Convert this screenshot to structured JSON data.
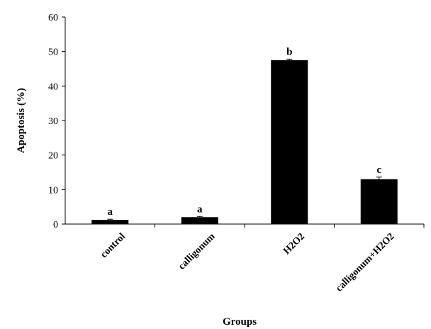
{
  "chart_data": {
    "type": "bar",
    "categories": [
      "control",
      "calligonum",
      "H2O2",
      "calligonum+H2O2"
    ],
    "values": [
      1.2,
      2.0,
      47.5,
      13.0
    ],
    "errors": [
      0.2,
      0.2,
      0.3,
      0.6
    ],
    "significance_labels": [
      "a",
      "a",
      "b",
      "c"
    ],
    "xlabel": "Groups",
    "ylabel": "Apoptosis (%)",
    "ylim": [
      0,
      60
    ],
    "yticks": [
      0,
      10,
      20,
      30,
      40,
      50,
      60
    ],
    "grid": false,
    "legend": "none",
    "colors": {
      "bar": "#000000",
      "axis": "#000000",
      "background": "#ffffff"
    }
  }
}
